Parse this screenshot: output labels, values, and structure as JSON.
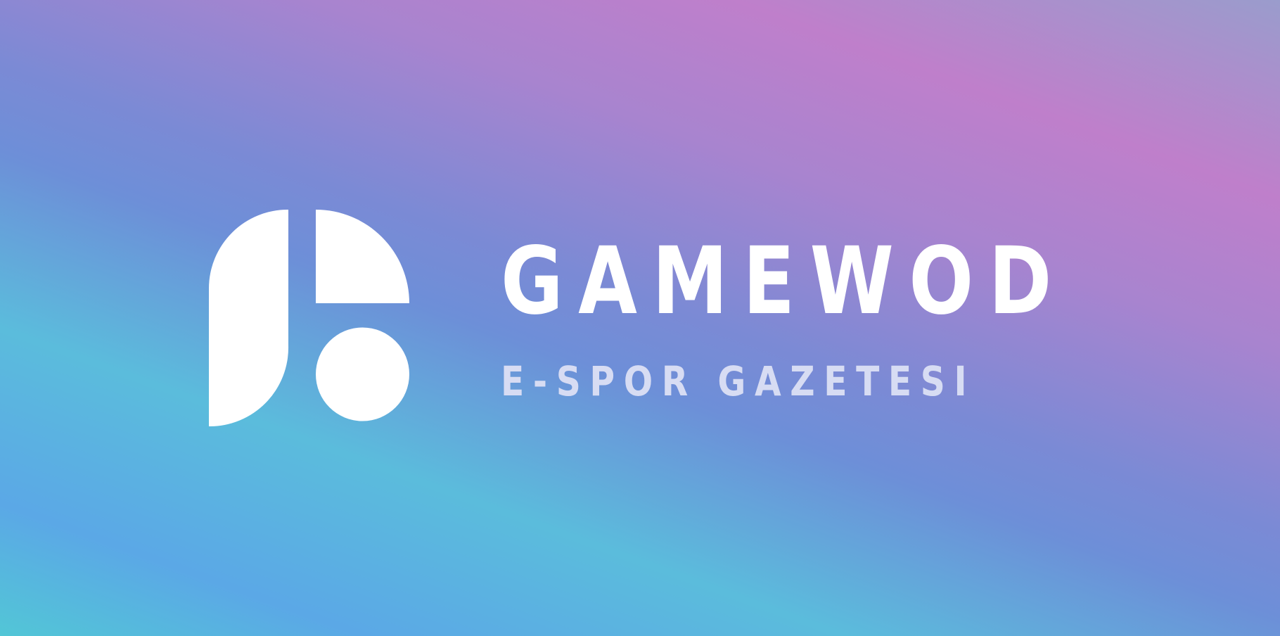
{
  "brand": {
    "name": "GAMEWOD",
    "tagline": "E-SPOR GAZETESI",
    "logo_icon": "gamewod-logo-icon"
  },
  "colors": {
    "logo": "#ffffff",
    "name": "#ffffff",
    "tagline": "#d7dcf3",
    "gradient_cyan": "#5bbcdc",
    "gradient_blue": "#6d8fd8",
    "gradient_pink": "#bf7fcb"
  }
}
